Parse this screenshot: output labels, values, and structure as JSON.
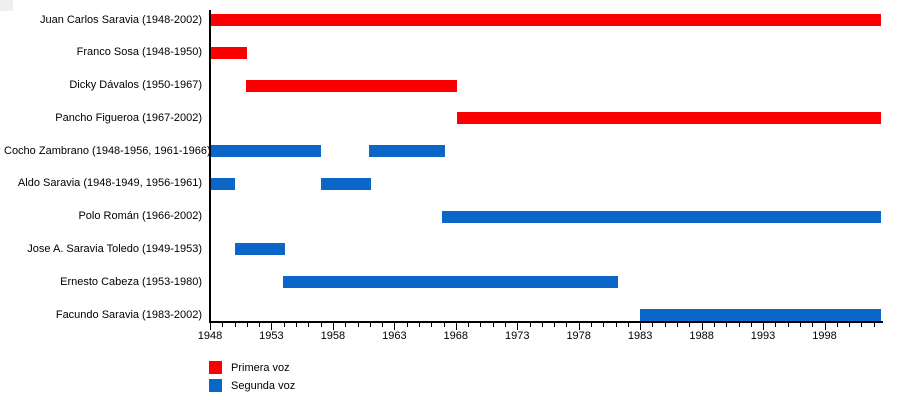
{
  "chart_data": {
    "type": "bar",
    "subtype": "gantt-timeline",
    "title": "",
    "x_axis": {
      "start": 1948,
      "end": 2002.6,
      "major_ticks": [
        1948,
        1953,
        1958,
        1963,
        1968,
        1973,
        1978,
        1983,
        1988,
        1993,
        1998
      ],
      "minor_tick_every": 1,
      "minor_tick_last": 2002
    },
    "colors": {
      "primera": "#fb0000",
      "segunda": "#0a66c8",
      "axis": "#000000",
      "text": "#000000"
    },
    "legend": {
      "position": "bottom-left",
      "entries": [
        {
          "label": "Primera voz",
          "voice": "primera"
        },
        {
          "label": "Segunda voz",
          "voice": "segunda"
        }
      ]
    },
    "members": [
      {
        "label": "Juan Carlos Saravia (1948-2002)",
        "voice": "primera",
        "segments": [
          [
            1948,
            2002.6
          ]
        ]
      },
      {
        "label": "Franco Sosa (1948-1950)",
        "voice": "primera",
        "segments": [
          [
            1948,
            1951
          ]
        ]
      },
      {
        "label": "Dicky Dávalos (1950-1967)",
        "voice": "primera",
        "segments": [
          [
            1950.9,
            1968.1
          ]
        ]
      },
      {
        "label": "Pancho Figueroa (1967-2002)",
        "voice": "primera",
        "segments": [
          [
            1968.1,
            2002.6
          ]
        ]
      },
      {
        "label": "Cocho Zambrano (1948-1956, 1961-1966)",
        "voice": "segunda",
        "segments": [
          [
            1948,
            1957
          ],
          [
            1960.9,
            1967.1
          ]
        ]
      },
      {
        "label": "Aldo Saravia (1948-1949, 1956-1961)",
        "voice": "segunda",
        "segments": [
          [
            1948,
            1950
          ],
          [
            1957,
            1961.1
          ]
        ]
      },
      {
        "label": "Polo Román (1966-2002)",
        "voice": "segunda",
        "segments": [
          [
            1966.9,
            2002.6
          ]
        ]
      },
      {
        "label": "Jose A. Saravia Toledo (1949-1953)",
        "voice": "segunda",
        "segments": [
          [
            1950,
            1954.1
          ]
        ]
      },
      {
        "label": "Ernesto Cabeza (1953-1980)",
        "voice": "segunda",
        "segments": [
          [
            1953.9,
            1981.2
          ]
        ]
      },
      {
        "label": "Facundo Saravia (1983-2002)",
        "voice": "segunda",
        "segments": [
          [
            1983,
            2002.6
          ]
        ]
      }
    ]
  }
}
